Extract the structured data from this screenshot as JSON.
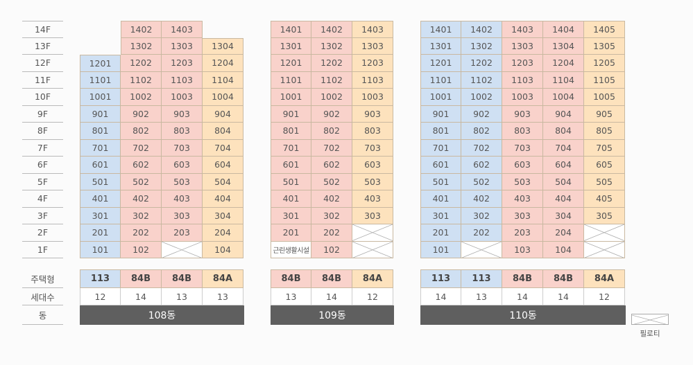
{
  "floors": [
    "14F",
    "13F",
    "12F",
    "11F",
    "10F",
    "9F",
    "8F",
    "7F",
    "6F",
    "5F",
    "4F",
    "3F",
    "2F",
    "1F"
  ],
  "row_labels": {
    "type": "주택형",
    "count": "세대수",
    "building": "동"
  },
  "legend": {
    "piloti_label": "필로티"
  },
  "colors": {
    "blue": "#cfe0f3",
    "pink": "#f9d2cb",
    "peach": "#fde2bd",
    "dark": "#5f5f5f"
  },
  "buildings": [
    {
      "name": "108동",
      "types": [
        {
          "label": "113",
          "color": "blue"
        },
        {
          "label": "84B",
          "color": "pink"
        },
        {
          "label": "84B",
          "color": "pink"
        },
        {
          "label": "84A",
          "color": "peach"
        }
      ],
      "counts": [
        "12",
        "14",
        "13",
        "13"
      ],
      "columns": [
        [
          "",
          "",
          "1201",
          "1101",
          "1001",
          "901",
          "801",
          "701",
          "601",
          "501",
          "401",
          "301",
          "201",
          "101"
        ],
        [
          "1402",
          "1302",
          "1202",
          "1102",
          "1002",
          "902",
          "802",
          "702",
          "602",
          "502",
          "402",
          "302",
          "202",
          "102"
        ],
        [
          "1403",
          "1303",
          "1203",
          "1103",
          "1003",
          "903",
          "803",
          "703",
          "603",
          "503",
          "403",
          "303",
          "203",
          "PILOTI"
        ],
        [
          "",
          "1304",
          "1204",
          "1104",
          "1004",
          "904",
          "804",
          "704",
          "604",
          "504",
          "404",
          "304",
          "204",
          "104"
        ]
      ]
    },
    {
      "name": "109동",
      "types": [
        {
          "label": "84B",
          "color": "pink"
        },
        {
          "label": "84B",
          "color": "pink"
        },
        {
          "label": "84A",
          "color": "peach"
        }
      ],
      "counts": [
        "13",
        "14",
        "12"
      ],
      "columns": [
        [
          "1401",
          "1301",
          "1201",
          "1101",
          "1001",
          "901",
          "801",
          "701",
          "601",
          "501",
          "401",
          "301",
          "201",
          "근린생활시설"
        ],
        [
          "1402",
          "1302",
          "1202",
          "1102",
          "1002",
          "902",
          "802",
          "702",
          "602",
          "502",
          "402",
          "302",
          "202",
          "102"
        ],
        [
          "1403",
          "1303",
          "1203",
          "1103",
          "1003",
          "903",
          "803",
          "703",
          "603",
          "503",
          "403",
          "303",
          "PILOTI",
          "PILOTI"
        ]
      ]
    },
    {
      "name": "110동",
      "types": [
        {
          "label": "113",
          "color": "blue"
        },
        {
          "label": "113",
          "color": "blue"
        },
        {
          "label": "84B",
          "color": "pink"
        },
        {
          "label": "84B",
          "color": "pink"
        },
        {
          "label": "84A",
          "color": "peach"
        }
      ],
      "counts": [
        "14",
        "13",
        "14",
        "14",
        "12"
      ],
      "columns": [
        [
          "1401",
          "1301",
          "1201",
          "1101",
          "1001",
          "901",
          "801",
          "701",
          "601",
          "501",
          "401",
          "301",
          "201",
          "101"
        ],
        [
          "1402",
          "1302",
          "1202",
          "1102",
          "1002",
          "902",
          "802",
          "702",
          "602",
          "502",
          "402",
          "302",
          "202",
          "PILOTI"
        ],
        [
          "1403",
          "1303",
          "1203",
          "1103",
          "1003",
          "903",
          "803",
          "703",
          "603",
          "503",
          "403",
          "303",
          "203",
          "103"
        ],
        [
          "1404",
          "1304",
          "1204",
          "1104",
          "1004",
          "904",
          "804",
          "704",
          "604",
          "504",
          "404",
          "304",
          "204",
          "104"
        ],
        [
          "1405",
          "1305",
          "1205",
          "1105",
          "1005",
          "905",
          "805",
          "705",
          "605",
          "505",
          "405",
          "305",
          "PILOTI",
          "PILOTI"
        ]
      ]
    }
  ]
}
